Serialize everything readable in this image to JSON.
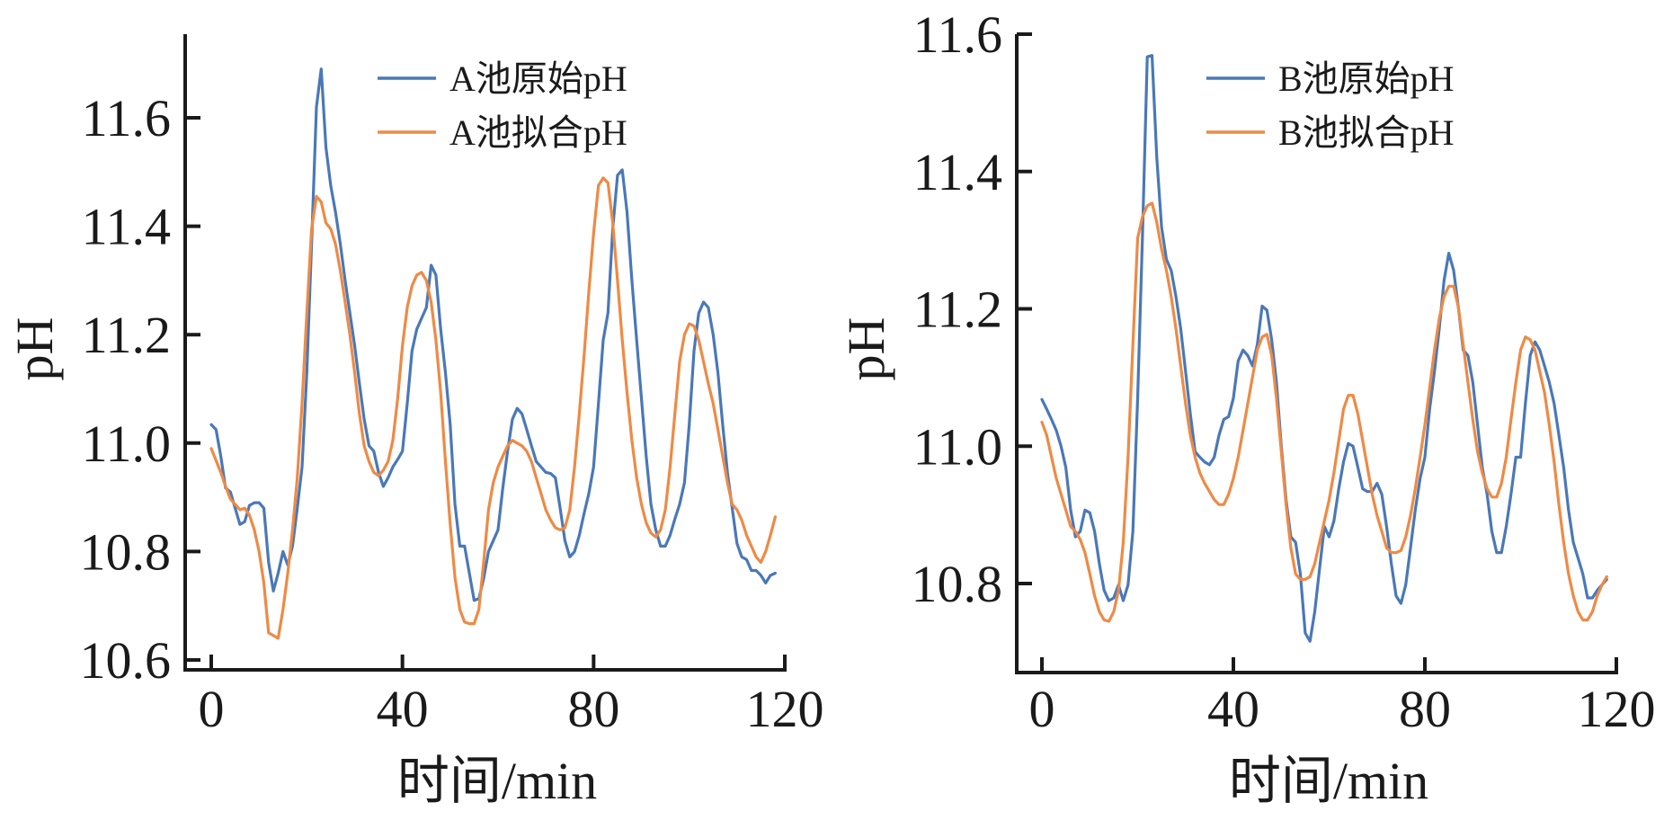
{
  "colors": {
    "original": "#4a78b8",
    "fitted": "#ee8a45"
  },
  "chart_data": [
    {
      "type": "line",
      "panel": "A",
      "title": "",
      "xlabel": "时间/min",
      "ylabel": "pH",
      "xlim": [
        0,
        120
      ],
      "ylim": [
        10.58,
        11.75
      ],
      "xticks": [
        0,
        40,
        80,
        120
      ],
      "yticks": [
        10.6,
        10.8,
        11.0,
        11.2,
        11.4,
        11.6
      ],
      "ytick_labels": [
        "10.6",
        "10.8",
        "11.0",
        "11.2",
        "11.4",
        "11.6"
      ],
      "xtick_labels": [
        "0",
        "40",
        "80",
        "120"
      ],
      "grid": false,
      "legend_position": "top-right",
      "x": [
        0,
        1,
        2,
        3,
        4,
        5,
        6,
        7,
        8,
        9,
        10,
        11,
        12,
        13,
        14,
        15,
        16,
        17,
        18,
        19,
        20,
        21,
        22,
        23,
        24,
        25,
        26,
        27,
        28,
        29,
        30,
        31,
        32,
        33,
        34,
        35,
        36,
        37,
        38,
        39,
        40,
        41,
        42,
        43,
        44,
        45,
        46,
        47,
        48,
        49,
        50,
        51,
        52,
        53,
        54,
        55,
        56,
        57,
        58,
        59,
        60,
        61,
        62,
        63,
        64,
        65,
        66,
        67,
        68,
        69,
        70,
        71,
        72,
        73,
        74,
        75,
        76,
        77,
        78,
        79,
        80,
        81,
        82,
        83,
        84,
        85,
        86,
        87,
        88,
        89,
        90,
        91,
        92,
        93,
        94,
        95,
        96,
        97,
        98,
        99,
        100,
        101,
        102,
        103,
        104,
        105,
        106,
        107,
        108,
        109,
        110,
        111,
        112,
        113,
        114,
        115,
        116,
        117,
        118
      ],
      "series": [
        {
          "name": "A池原始pH",
          "color_key": "original",
          "values": [
            11.034,
            11.025,
            10.976,
            10.917,
            10.91,
            10.88,
            10.85,
            10.855,
            10.885,
            10.89,
            10.89,
            10.88,
            10.78,
            10.727,
            10.76,
            10.8,
            10.775,
            10.81,
            10.88,
            10.956,
            11.13,
            11.367,
            11.62,
            11.69,
            11.545,
            11.475,
            11.426,
            11.367,
            11.3,
            11.24,
            11.18,
            11.11,
            11.044,
            10.995,
            10.985,
            10.946,
            10.92,
            10.936,
            10.956,
            10.97,
            10.985,
            11.073,
            11.17,
            11.21,
            11.23,
            11.25,
            11.328,
            11.31,
            11.21,
            11.13,
            11.034,
            10.887,
            10.81,
            10.81,
            10.76,
            10.71,
            10.713,
            10.75,
            10.8,
            10.82,
            10.84,
            10.917,
            10.985,
            11.044,
            11.064,
            11.054,
            11.025,
            10.995,
            10.966,
            10.956,
            10.946,
            10.944,
            10.936,
            10.88,
            10.82,
            10.79,
            10.8,
            10.83,
            10.87,
            10.907,
            10.956,
            11.073,
            11.19,
            11.24,
            11.395,
            11.494,
            11.504,
            11.426,
            11.3,
            11.19,
            11.083,
            10.976,
            10.887,
            10.84,
            10.81,
            10.81,
            10.83,
            10.86,
            10.887,
            10.927,
            11.034,
            11.17,
            11.24,
            11.26,
            11.25,
            11.2,
            11.13,
            11.034,
            10.946,
            10.88,
            10.815,
            10.79,
            10.785,
            10.765,
            10.765,
            10.756,
            10.742,
            10.756,
            10.76
          ]
        },
        {
          "name": "A池拟合pH",
          "color_key": "fitted",
          "values": [
            10.99,
            10.968,
            10.946,
            10.92,
            10.897,
            10.887,
            10.877,
            10.88,
            10.867,
            10.84,
            10.8,
            10.742,
            10.65,
            10.645,
            10.64,
            10.693,
            10.76,
            10.84,
            10.936,
            11.073,
            11.24,
            11.395,
            11.455,
            11.445,
            11.406,
            11.395,
            11.367,
            11.318,
            11.26,
            11.2,
            11.13,
            11.054,
            10.995,
            10.966,
            10.946,
            10.94,
            10.95,
            10.966,
            11.005,
            11.083,
            11.18,
            11.25,
            11.29,
            11.31,
            11.315,
            11.3,
            11.26,
            11.19,
            11.093,
            10.966,
            10.85,
            10.752,
            10.693,
            10.67,
            10.667,
            10.667,
            10.693,
            10.78,
            10.877,
            10.927,
            10.956,
            10.976,
            10.995,
            11.005,
            11.0,
            10.995,
            10.985,
            10.966,
            10.936,
            10.907,
            10.877,
            10.858,
            10.844,
            10.84,
            10.844,
            10.877,
            10.956,
            11.054,
            11.161,
            11.279,
            11.387,
            11.475,
            11.489,
            11.48,
            11.406,
            11.3,
            11.19,
            11.093,
            11.005,
            10.936,
            10.887,
            10.853,
            10.834,
            10.827,
            10.84,
            10.877,
            10.956,
            11.054,
            11.15,
            11.2,
            11.22,
            11.216,
            11.19,
            11.15,
            11.11,
            11.073,
            11.025,
            10.976,
            10.927,
            10.887,
            10.877,
            10.858,
            10.83,
            10.81,
            10.79,
            10.78,
            10.8,
            10.83,
            10.864
          ]
        }
      ]
    },
    {
      "type": "line",
      "panel": "B",
      "title": "",
      "xlabel": "时间/min",
      "ylabel": "pH",
      "xlim": [
        0,
        120
      ],
      "ylim": [
        10.67,
        11.61
      ],
      "xticks": [
        0,
        40,
        80,
        120
      ],
      "yticks": [
        10.8,
        11.0,
        11.2,
        11.4,
        11.6
      ],
      "ytick_labels": [
        "10.8",
        "11.0",
        "11.2",
        "11.4",
        "11.6"
      ],
      "xtick_labels": [
        "0",
        "40",
        "80",
        "120"
      ],
      "grid": false,
      "legend_position": "top-right",
      "x": [
        0,
        1,
        2,
        3,
        4,
        5,
        6,
        7,
        8,
        9,
        10,
        11,
        12,
        13,
        14,
        15,
        16,
        17,
        18,
        19,
        20,
        21,
        22,
        23,
        24,
        25,
        26,
        27,
        28,
        29,
        30,
        31,
        32,
        33,
        34,
        35,
        36,
        37,
        38,
        39,
        40,
        41,
        42,
        43,
        44,
        45,
        46,
        47,
        48,
        49,
        50,
        51,
        52,
        53,
        54,
        55,
        56,
        57,
        58,
        59,
        60,
        61,
        62,
        63,
        64,
        65,
        66,
        67,
        68,
        69,
        70,
        71,
        72,
        73,
        74,
        75,
        76,
        77,
        78,
        79,
        80,
        81,
        82,
        83,
        84,
        85,
        86,
        87,
        88,
        89,
        90,
        91,
        92,
        93,
        94,
        95,
        96,
        97,
        98,
        99,
        100,
        101,
        102,
        103,
        104,
        105,
        106,
        107,
        108,
        109,
        110,
        111,
        112,
        113,
        114,
        115,
        116,
        117,
        118
      ],
      "series": [
        {
          "name": "B池原始pH",
          "color_key": "original",
          "values": [
            11.068,
            11.054,
            11.039,
            11.023,
            11.0,
            10.969,
            10.907,
            10.868,
            10.876,
            10.907,
            10.903,
            10.876,
            10.829,
            10.79,
            10.775,
            10.779,
            10.798,
            10.775,
            10.798,
            10.876,
            11.07,
            11.303,
            11.567,
            11.569,
            11.42,
            11.319,
            11.272,
            11.256,
            11.218,
            11.171,
            11.109,
            11.047,
            10.992,
            10.984,
            10.977,
            10.973,
            10.984,
            11.016,
            11.039,
            11.043,
            11.07,
            11.124,
            11.14,
            11.132,
            11.117,
            11.148,
            11.204,
            11.198,
            11.155,
            11.093,
            11.0,
            10.922,
            10.868,
            10.86,
            10.814,
            10.728,
            10.716,
            10.759,
            10.821,
            10.883,
            10.868,
            10.891,
            10.938,
            10.977,
            11.004,
            11.0,
            10.969,
            10.938,
            10.934,
            10.934,
            10.946,
            10.93,
            10.883,
            10.829,
            10.782,
            10.771,
            10.798,
            10.852,
            10.907,
            10.953,
            10.984,
            11.054,
            11.109,
            11.171,
            11.241,
            11.281,
            11.256,
            11.202,
            11.14,
            11.132,
            11.093,
            11.031,
            10.969,
            10.93,
            10.876,
            10.845,
            10.845,
            10.883,
            10.93,
            10.984,
            10.984,
            11.062,
            11.132,
            11.152,
            11.14,
            11.117,
            11.093,
            11.062,
            11.016,
            10.969,
            10.907,
            10.86,
            10.837,
            10.814,
            10.779,
            10.779,
            10.79,
            10.798,
            10.806
          ]
        },
        {
          "name": "B池拟合pH",
          "color_key": "fitted",
          "values": [
            11.035,
            11.016,
            10.984,
            10.953,
            10.93,
            10.907,
            10.883,
            10.876,
            10.864,
            10.845,
            10.814,
            10.782,
            10.759,
            10.747,
            10.745,
            10.759,
            10.79,
            10.86,
            10.984,
            11.148,
            11.303,
            11.334,
            11.35,
            11.354,
            11.326,
            11.287,
            11.256,
            11.218,
            11.171,
            11.117,
            11.062,
            11.016,
            10.984,
            10.961,
            10.946,
            10.934,
            10.922,
            10.915,
            10.915,
            10.93,
            10.953,
            10.984,
            11.023,
            11.062,
            11.101,
            11.14,
            11.159,
            11.163,
            11.132,
            11.07,
            10.992,
            10.915,
            10.852,
            10.814,
            10.806,
            10.806,
            10.81,
            10.829,
            10.86,
            10.891,
            10.922,
            10.961,
            11.008,
            11.054,
            11.074,
            11.074,
            11.047,
            11.008,
            10.969,
            10.93,
            10.899,
            10.876,
            10.852,
            10.845,
            10.845,
            10.848,
            10.868,
            10.899,
            10.938,
            10.984,
            11.031,
            11.085,
            11.14,
            11.186,
            11.218,
            11.233,
            11.233,
            11.202,
            11.148,
            11.093,
            11.039,
            10.992,
            10.961,
            10.938,
            10.926,
            10.926,
            10.946,
            10.984,
            11.039,
            11.093,
            11.14,
            11.159,
            11.155,
            11.14,
            11.109,
            11.078,
            11.031,
            10.977,
            10.915,
            10.86,
            10.814,
            10.782,
            10.759,
            10.747,
            10.747,
            10.759,
            10.782,
            10.798,
            10.81
          ]
        }
      ]
    }
  ]
}
